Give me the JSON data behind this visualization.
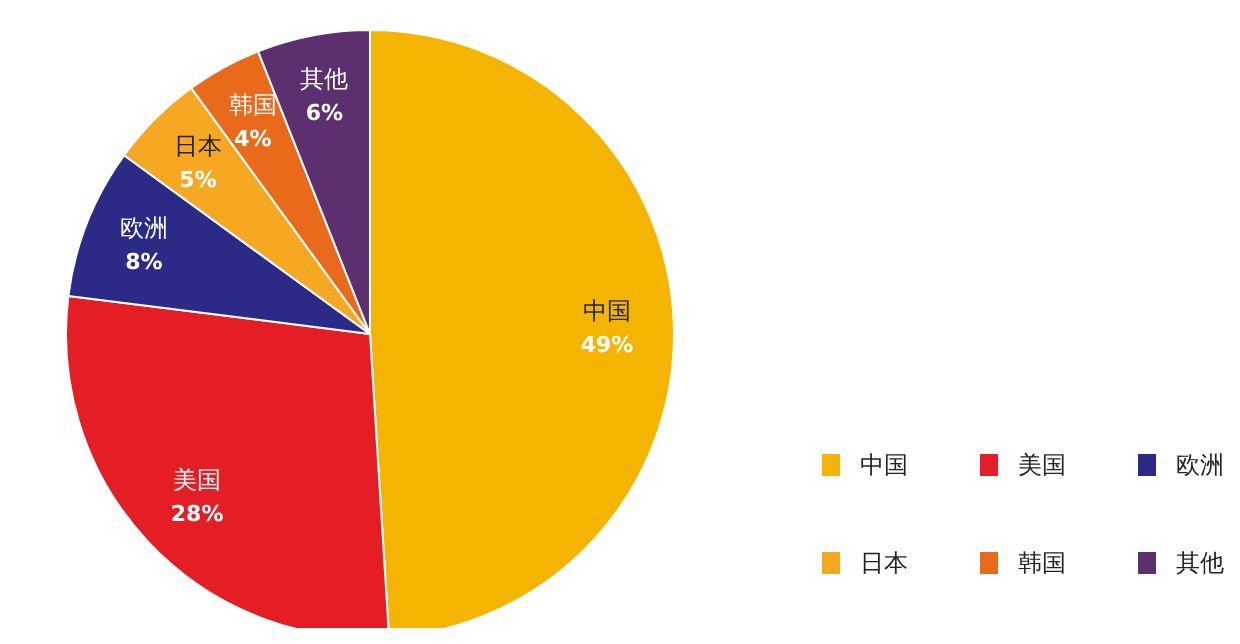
{
  "chart_data": {
    "type": "pie",
    "categories": [
      "中国",
      "美国",
      "欧洲",
      "日本",
      "韩国",
      "其他"
    ],
    "values": [
      49,
      28,
      8,
      5,
      4,
      6
    ],
    "value_labels": [
      "49%",
      "28%",
      "8%",
      "5%",
      "4%",
      "6%"
    ],
    "colors": [
      "#f5b400",
      "#e41e24",
      "#2b2a86",
      "#f7a823",
      "#ea6a1c",
      "#5c2f6e"
    ],
    "legend": "bottom right"
  }
}
